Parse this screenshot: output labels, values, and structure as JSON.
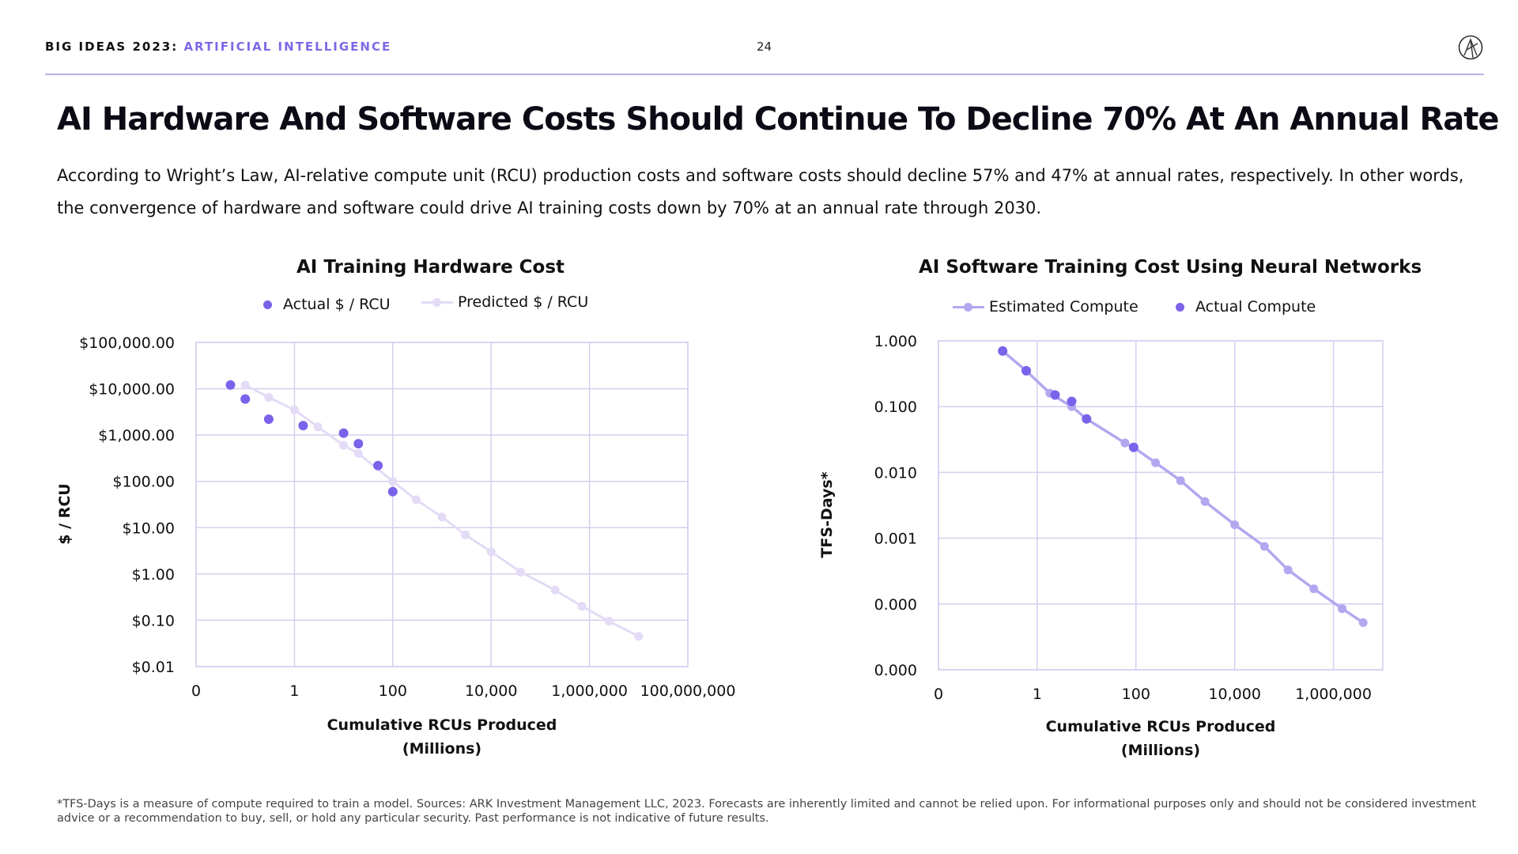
{
  "header": {
    "brand": "BIG IDEAS 2023:",
    "section": "ARTIFICIAL INTELLIGENCE",
    "page_number": "24",
    "logo_icon": "ark-logo-icon"
  },
  "title": "AI Hardware And Software Costs Should Continue To Decline 70% At An Annual Rate",
  "subtitle": "According to Wright’s Law, AI-relative compute unit (RCU) production costs and software costs should decline 57% and 47% at annual rates, respectively. In other words, the convergence of hardware and software could drive AI training costs down by 70% at an annual rate through 2030.",
  "colors": {
    "actual": "#7b62ea",
    "predicted": "#e4dbf6",
    "estimated": "#b3a7ef",
    "grid": "#d3cfef",
    "accent": "#7b6ae6"
  },
  "chart_data": [
    {
      "type": "scatter",
      "title": "AI Training Hardware Cost",
      "xlabel": "Cumulative RCUs Produced\n(Millions)",
      "ylabel": "$ / RCU",
      "x_scale": "log",
      "y_scale": "log",
      "xlim": [
        0.01,
        100000000
      ],
      "ylim": [
        0.01,
        100000
      ],
      "x_tick_values": [
        0.01,
        1,
        100,
        10000,
        1000000,
        100000000
      ],
      "x_tick_labels": [
        "0",
        "1",
        "100",
        "10,000",
        "1,000,000",
        "100,000,000"
      ],
      "y_tick_values": [
        100000,
        10000,
        1000,
        100,
        10,
        1,
        0.1,
        0.01
      ],
      "y_tick_labels": [
        "$100,000.00",
        "$10,000.00",
        "$1,000.00",
        "$100.00",
        "$10.00",
        "$1.00",
        "$0.10",
        "$0.01"
      ],
      "grid": true,
      "legend": "top-center",
      "series": [
        {
          "name": "Predicted $ / RCU",
          "style": "line-marker",
          "points": [
            [
              0.1,
              12000
            ],
            [
              0.3,
              6500
            ],
            [
              1,
              3500
            ],
            [
              3,
              1500
            ],
            [
              10,
              600
            ],
            [
              20,
              400
            ],
            [
              100,
              100
            ],
            [
              300,
              40
            ],
            [
              1000,
              17
            ],
            [
              3000,
              7
            ],
            [
              10000,
              3
            ],
            [
              40000,
              1.1
            ],
            [
              200000,
              0.45
            ],
            [
              700000,
              0.2
            ],
            [
              2500000,
              0.095
            ],
            [
              10000000,
              0.045
            ]
          ]
        },
        {
          "name": "Actual $ / RCU",
          "style": "marker",
          "points": [
            [
              0.05,
              12000
            ],
            [
              0.1,
              6000
            ],
            [
              0.3,
              2200
            ],
            [
              1.5,
              1600
            ],
            [
              10,
              1100
            ],
            [
              20,
              650
            ],
            [
              50,
              220
            ],
            [
              100,
              60
            ]
          ]
        }
      ]
    },
    {
      "type": "line",
      "title": "AI Software Training Cost Using Neural Networks",
      "xlabel": "Cumulative RCUs Produced\n(Millions)",
      "ylabel": "TFS-Days*",
      "x_scale": "log",
      "y_scale": "log",
      "xlim": [
        0.01,
        10000000
      ],
      "ylim": [
        1e-05,
        1
      ],
      "x_tick_values": [
        0.01,
        1,
        100,
        10000,
        1000000
      ],
      "x_tick_labels": [
        "0",
        "1",
        "100",
        "10,000",
        "1,000,000"
      ],
      "y_tick_values": [
        1,
        0.1,
        0.01,
        0.001,
        0.0001,
        1e-05
      ],
      "y_tick_labels": [
        "1.000",
        "0.100",
        "0.010",
        "0.001",
        "0.000",
        "0.000"
      ],
      "grid": true,
      "legend": "top-center",
      "series": [
        {
          "name": "Estimated Compute",
          "style": "line-marker",
          "points": [
            [
              0.2,
              0.7
            ],
            [
              0.6,
              0.35
            ],
            [
              1.8,
              0.16
            ],
            [
              5,
              0.1
            ],
            [
              10,
              0.065
            ],
            [
              60,
              0.028
            ],
            [
              90,
              0.024
            ],
            [
              250,
              0.014
            ],
            [
              800,
              0.0075
            ],
            [
              2500,
              0.0036
            ],
            [
              10000,
              0.0016
            ],
            [
              40000,
              0.00075
            ],
            [
              120000,
              0.00033
            ],
            [
              400000,
              0.00017
            ],
            [
              1500000,
              8.5e-05
            ],
            [
              4000000,
              5.2e-05
            ]
          ]
        },
        {
          "name": "Actual Compute",
          "style": "marker",
          "points": [
            [
              0.2,
              0.7
            ],
            [
              0.6,
              0.35
            ],
            [
              2.3,
              0.15
            ],
            [
              5,
              0.12
            ],
            [
              10,
              0.065
            ],
            [
              90,
              0.024
            ]
          ]
        }
      ]
    }
  ],
  "footnote": "*TFS-Days is a measure of compute required to train a model. Sources: ARK Investment Management LLC, 2023. Forecasts are inherently limited and cannot be relied upon. For informational purposes only and should not be considered investment advice or a recommendation to buy, sell, or hold any particular security. Past performance is not indicative of future results."
}
